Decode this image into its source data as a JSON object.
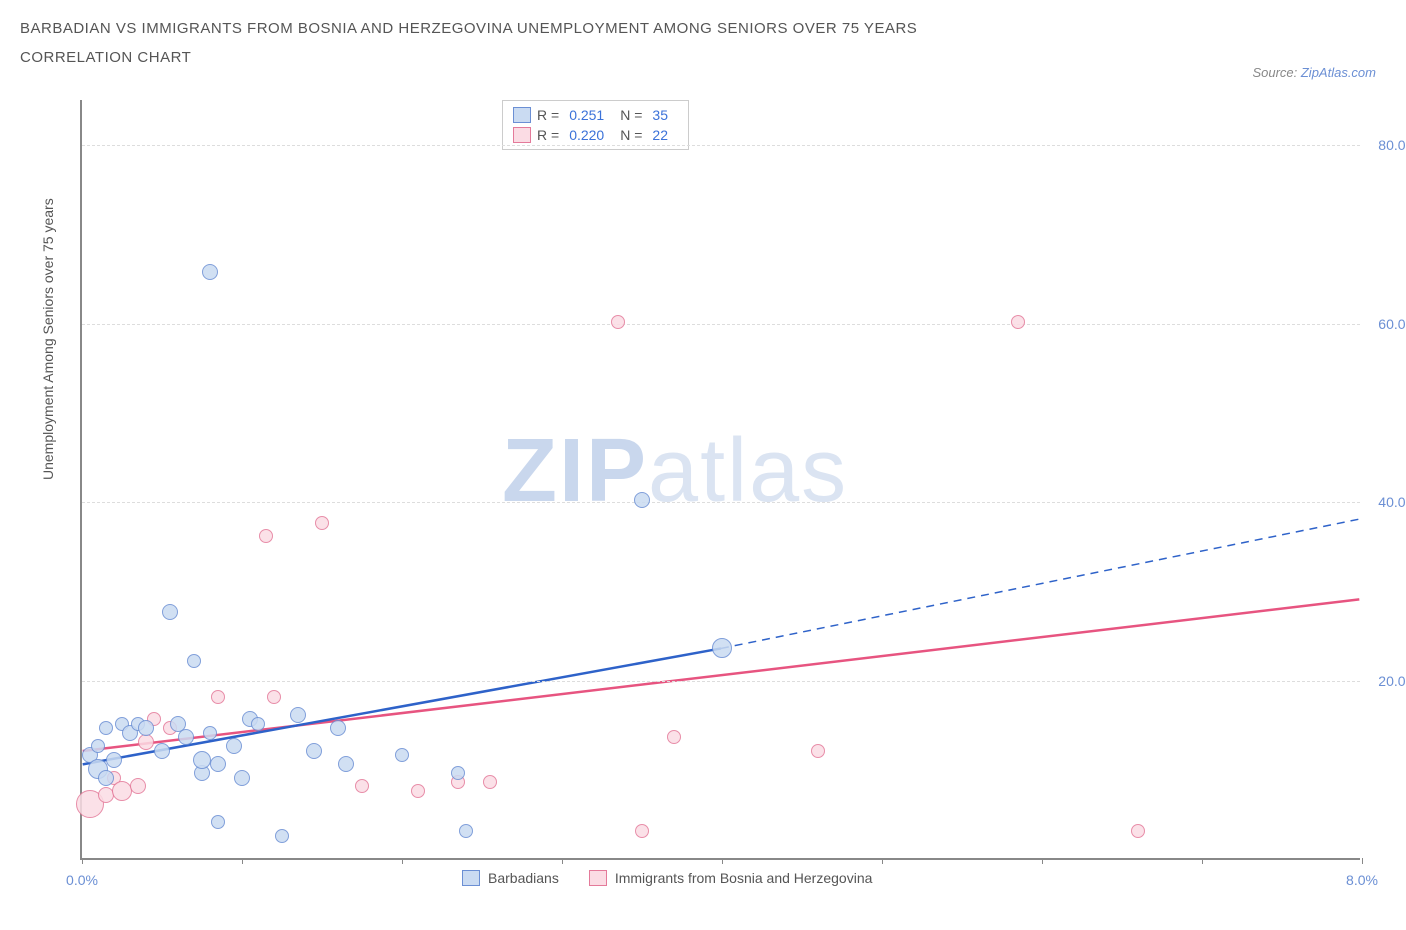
{
  "title_line1": "BARBADIAN VS IMMIGRANTS FROM BOSNIA AND HERZEGOVINA UNEMPLOYMENT AMONG SENIORS OVER 75 YEARS",
  "title_line2": "CORRELATION CHART",
  "source_prefix": "Source: ",
  "source_name": "ZipAtlas.com",
  "y_axis_label": "Unemployment Among Seniors over 75 years",
  "watermark_zip": "ZIP",
  "watermark_atlas": "atlas",
  "chart": {
    "type": "scatter",
    "xlim": [
      0,
      8
    ],
    "ylim": [
      0,
      85
    ],
    "x_ticks": [
      0,
      1,
      2,
      3,
      4,
      5,
      6,
      7,
      8
    ],
    "x_tick_labels_shown": {
      "0": "0.0%",
      "8": "8.0%"
    },
    "y_ticks": [
      20,
      40,
      60,
      80
    ],
    "y_tick_labels": [
      "20.0%",
      "40.0%",
      "60.0%",
      "80.0%"
    ],
    "grid_color": "#dddddd",
    "axis_color": "#888888",
    "background_color": "#ffffff",
    "label_fontsize": 14,
    "tick_color": "#6b8fd4",
    "series": [
      {
        "name": "Barbadians",
        "legend_label": "Barbadians",
        "R_label": "R =",
        "R": "0.251",
        "N_label": "N =",
        "N": "35",
        "marker_fill": "#cadbf2",
        "marker_stroke": "#6b8fd4",
        "swatch_fill": "#cadbf2",
        "swatch_stroke": "#6b8fd4",
        "line_color": "#2e62c9",
        "line_width": 2.5,
        "line_dash_after_x": 4.0,
        "regression": {
          "x1": 0.0,
          "y1": 10.5,
          "x2": 4.0,
          "y2": 23.5,
          "x3": 8.0,
          "y3": 38.0
        },
        "points": [
          {
            "x": 0.05,
            "y": 11.5,
            "r": 8
          },
          {
            "x": 0.1,
            "y": 12.5,
            "r": 7
          },
          {
            "x": 0.1,
            "y": 10.0,
            "r": 10
          },
          {
            "x": 0.15,
            "y": 14.5,
            "r": 7
          },
          {
            "x": 0.15,
            "y": 9.0,
            "r": 8
          },
          {
            "x": 0.2,
            "y": 11.0,
            "r": 8
          },
          {
            "x": 0.25,
            "y": 15.0,
            "r": 7
          },
          {
            "x": 0.3,
            "y": 14.0,
            "r": 8
          },
          {
            "x": 0.35,
            "y": 15.0,
            "r": 7
          },
          {
            "x": 0.4,
            "y": 14.5,
            "r": 8
          },
          {
            "x": 0.5,
            "y": 12.0,
            "r": 8
          },
          {
            "x": 0.55,
            "y": 27.5,
            "r": 8
          },
          {
            "x": 0.6,
            "y": 15.0,
            "r": 8
          },
          {
            "x": 0.65,
            "y": 13.5,
            "r": 8
          },
          {
            "x": 0.7,
            "y": 22.0,
            "r": 7
          },
          {
            "x": 0.75,
            "y": 9.5,
            "r": 8
          },
          {
            "x": 0.75,
            "y": 11.0,
            "r": 9
          },
          {
            "x": 0.8,
            "y": 65.5,
            "r": 8
          },
          {
            "x": 0.8,
            "y": 14.0,
            "r": 7
          },
          {
            "x": 0.85,
            "y": 10.5,
            "r": 8
          },
          {
            "x": 0.85,
            "y": 4.0,
            "r": 7
          },
          {
            "x": 0.95,
            "y": 12.5,
            "r": 8
          },
          {
            "x": 1.0,
            "y": 9.0,
            "r": 8
          },
          {
            "x": 1.05,
            "y": 15.5,
            "r": 8
          },
          {
            "x": 1.1,
            "y": 15.0,
            "r": 7
          },
          {
            "x": 1.25,
            "y": 2.5,
            "r": 7
          },
          {
            "x": 1.35,
            "y": 16.0,
            "r": 8
          },
          {
            "x": 1.45,
            "y": 12.0,
            "r": 8
          },
          {
            "x": 1.6,
            "y": 14.5,
            "r": 8
          },
          {
            "x": 1.65,
            "y": 10.5,
            "r": 8
          },
          {
            "x": 2.0,
            "y": 11.5,
            "r": 7
          },
          {
            "x": 2.35,
            "y": 9.5,
            "r": 7
          },
          {
            "x": 2.4,
            "y": 3.0,
            "r": 7
          },
          {
            "x": 3.5,
            "y": 40.0,
            "r": 8
          },
          {
            "x": 4.0,
            "y": 23.5,
            "r": 10
          }
        ]
      },
      {
        "name": "Immigrants from Bosnia and Herzegovina",
        "legend_label": "Immigrants from Bosnia and Herzegovina",
        "R_label": "R =",
        "R": "0.220",
        "N_label": "N =",
        "N": "22",
        "marker_fill": "#fbdce4",
        "marker_stroke": "#e47a9a",
        "swatch_fill": "#fbdce4",
        "swatch_stroke": "#e47a9a",
        "line_color": "#e75480",
        "line_width": 2.5,
        "regression": {
          "x1": 0.0,
          "y1": 12.0,
          "x2": 8.0,
          "y2": 29.0
        },
        "points": [
          {
            "x": 0.05,
            "y": 6.0,
            "r": 14
          },
          {
            "x": 0.15,
            "y": 7.0,
            "r": 8
          },
          {
            "x": 0.2,
            "y": 9.0,
            "r": 7
          },
          {
            "x": 0.25,
            "y": 7.5,
            "r": 10
          },
          {
            "x": 0.35,
            "y": 8.0,
            "r": 8
          },
          {
            "x": 0.4,
            "y": 13.0,
            "r": 8
          },
          {
            "x": 0.45,
            "y": 15.5,
            "r": 7
          },
          {
            "x": 0.55,
            "y": 14.5,
            "r": 7
          },
          {
            "x": 0.85,
            "y": 18.0,
            "r": 7
          },
          {
            "x": 1.15,
            "y": 36.0,
            "r": 7
          },
          {
            "x": 1.2,
            "y": 18.0,
            "r": 7
          },
          {
            "x": 1.5,
            "y": 37.5,
            "r": 7
          },
          {
            "x": 1.75,
            "y": 8.0,
            "r": 7
          },
          {
            "x": 2.1,
            "y": 7.5,
            "r": 7
          },
          {
            "x": 2.35,
            "y": 8.5,
            "r": 7
          },
          {
            "x": 2.55,
            "y": 8.5,
            "r": 7
          },
          {
            "x": 3.35,
            "y": 60.0,
            "r": 7
          },
          {
            "x": 3.5,
            "y": 3.0,
            "r": 7
          },
          {
            "x": 3.7,
            "y": 13.5,
            "r": 7
          },
          {
            "x": 4.6,
            "y": 12.0,
            "r": 7
          },
          {
            "x": 5.85,
            "y": 60.0,
            "r": 7
          },
          {
            "x": 6.6,
            "y": 3.0,
            "r": 7
          }
        ]
      }
    ]
  }
}
